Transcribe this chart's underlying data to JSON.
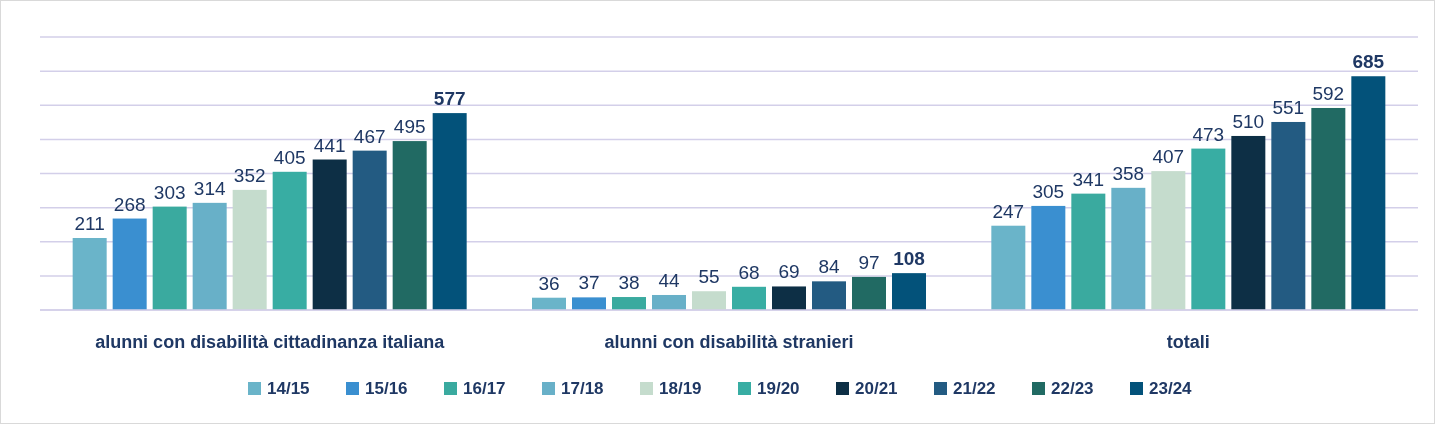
{
  "chart_data": {
    "type": "bar",
    "categories": [
      "alunni con disabilità cittadinanza italiana",
      "alunni con disabilità stranieri",
      "totali"
    ],
    "series": [
      {
        "name": "14/15",
        "color": "#6ab4c9",
        "values": [
          211,
          36,
          247
        ]
      },
      {
        "name": "15/16",
        "color": "#3a8fd0",
        "values": [
          268,
          37,
          305
        ]
      },
      {
        "name": "16/17",
        "color": "#3aaa9f",
        "values": [
          303,
          38,
          341
        ]
      },
      {
        "name": "17/18",
        "color": "#68b0c8",
        "values": [
          314,
          44,
          358
        ]
      },
      {
        "name": "18/19",
        "color": "#c5dccd",
        "values": [
          352,
          55,
          407
        ]
      },
      {
        "name": "19/20",
        "color": "#38ada3",
        "values": [
          405,
          68,
          473
        ]
      },
      {
        "name": "20/21",
        "color": "#0d2f45",
        "values": [
          441,
          69,
          510
        ]
      },
      {
        "name": "21/22",
        "color": "#235b82",
        "values": [
          467,
          84,
          551
        ]
      },
      {
        "name": "22/23",
        "color": "#216a63",
        "values": [
          495,
          97,
          592
        ]
      },
      {
        "name": "23/24",
        "color": "#03527a",
        "values": [
          577,
          108,
          685
        ]
      }
    ],
    "ylim": [
      0,
      800
    ],
    "yticks": [
      {
        "value": 0,
        "label": null
      },
      {
        "value": 100,
        "label": null
      },
      {
        "value": 200,
        "label": null
      },
      {
        "value": 300,
        "label": null
      },
      {
        "value": 400,
        "label": null
      },
      {
        "value": 500,
        "label": null
      },
      {
        "value": 600,
        "label": null
      },
      {
        "value": 700,
        "label": null
      },
      {
        "value": 800,
        "label": null
      }
    ],
    "tick_labels": "x",
    "grid": "y",
    "legend": "bottom",
    "data_labels": true
  }
}
